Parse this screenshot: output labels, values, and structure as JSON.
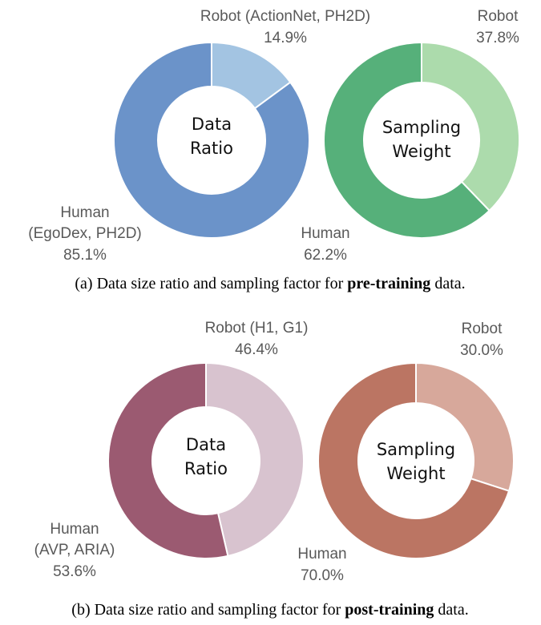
{
  "chart_data": [
    {
      "type": "pie",
      "subtype": "donut",
      "center_label": [
        "Data",
        "Ratio"
      ],
      "colors": [
        "#a3c4e2",
        "#6b93c9"
      ],
      "slices": [
        {
          "label_lines": [
            "Robot (ActionNet, PH2D)"
          ],
          "percent_text": "14.9%",
          "value": 14.9
        },
        {
          "label_lines": [
            "Human",
            "(EgoDex, PH2D)"
          ],
          "percent_text": "85.1%",
          "value": 85.1
        }
      ]
    },
    {
      "type": "pie",
      "subtype": "donut",
      "center_label": [
        "Sampling",
        "Weight"
      ],
      "colors": [
        "#acdbac",
        "#56b07a"
      ],
      "slices": [
        {
          "label_lines": [
            "Robot"
          ],
          "percent_text": "37.8%",
          "value": 37.8
        },
        {
          "label_lines": [
            "Human"
          ],
          "percent_text": "62.2%",
          "value": 62.2
        }
      ]
    },
    {
      "type": "pie",
      "subtype": "donut",
      "center_label": [
        "Data",
        "Ratio"
      ],
      "colors": [
        "#d8c3cf",
        "#9b5a71"
      ],
      "slices": [
        {
          "label_lines": [
            "Robot (H1, G1)"
          ],
          "percent_text": "46.4%",
          "value": 46.4
        },
        {
          "label_lines": [
            "Human",
            "(AVP, ARIA)"
          ],
          "percent_text": "53.6%",
          "value": 53.6
        }
      ]
    },
    {
      "type": "pie",
      "subtype": "donut",
      "center_label": [
        "Sampling",
        "Weight"
      ],
      "colors": [
        "#d7a89b",
        "#bb7563"
      ],
      "slices": [
        {
          "label_lines": [
            "Robot"
          ],
          "percent_text": "30.0%",
          "value": 30.0
        },
        {
          "label_lines": [
            "Human"
          ],
          "percent_text": "70.0%",
          "value": 70.0
        }
      ]
    }
  ],
  "captions": [
    {
      "prefix": "(a) Data size ratio and sampling factor for ",
      "bold": "pre-training",
      "suffix": " data."
    },
    {
      "prefix": "(b) Data size ratio and sampling factor for ",
      "bold": "post-training",
      "suffix": " data."
    }
  ]
}
